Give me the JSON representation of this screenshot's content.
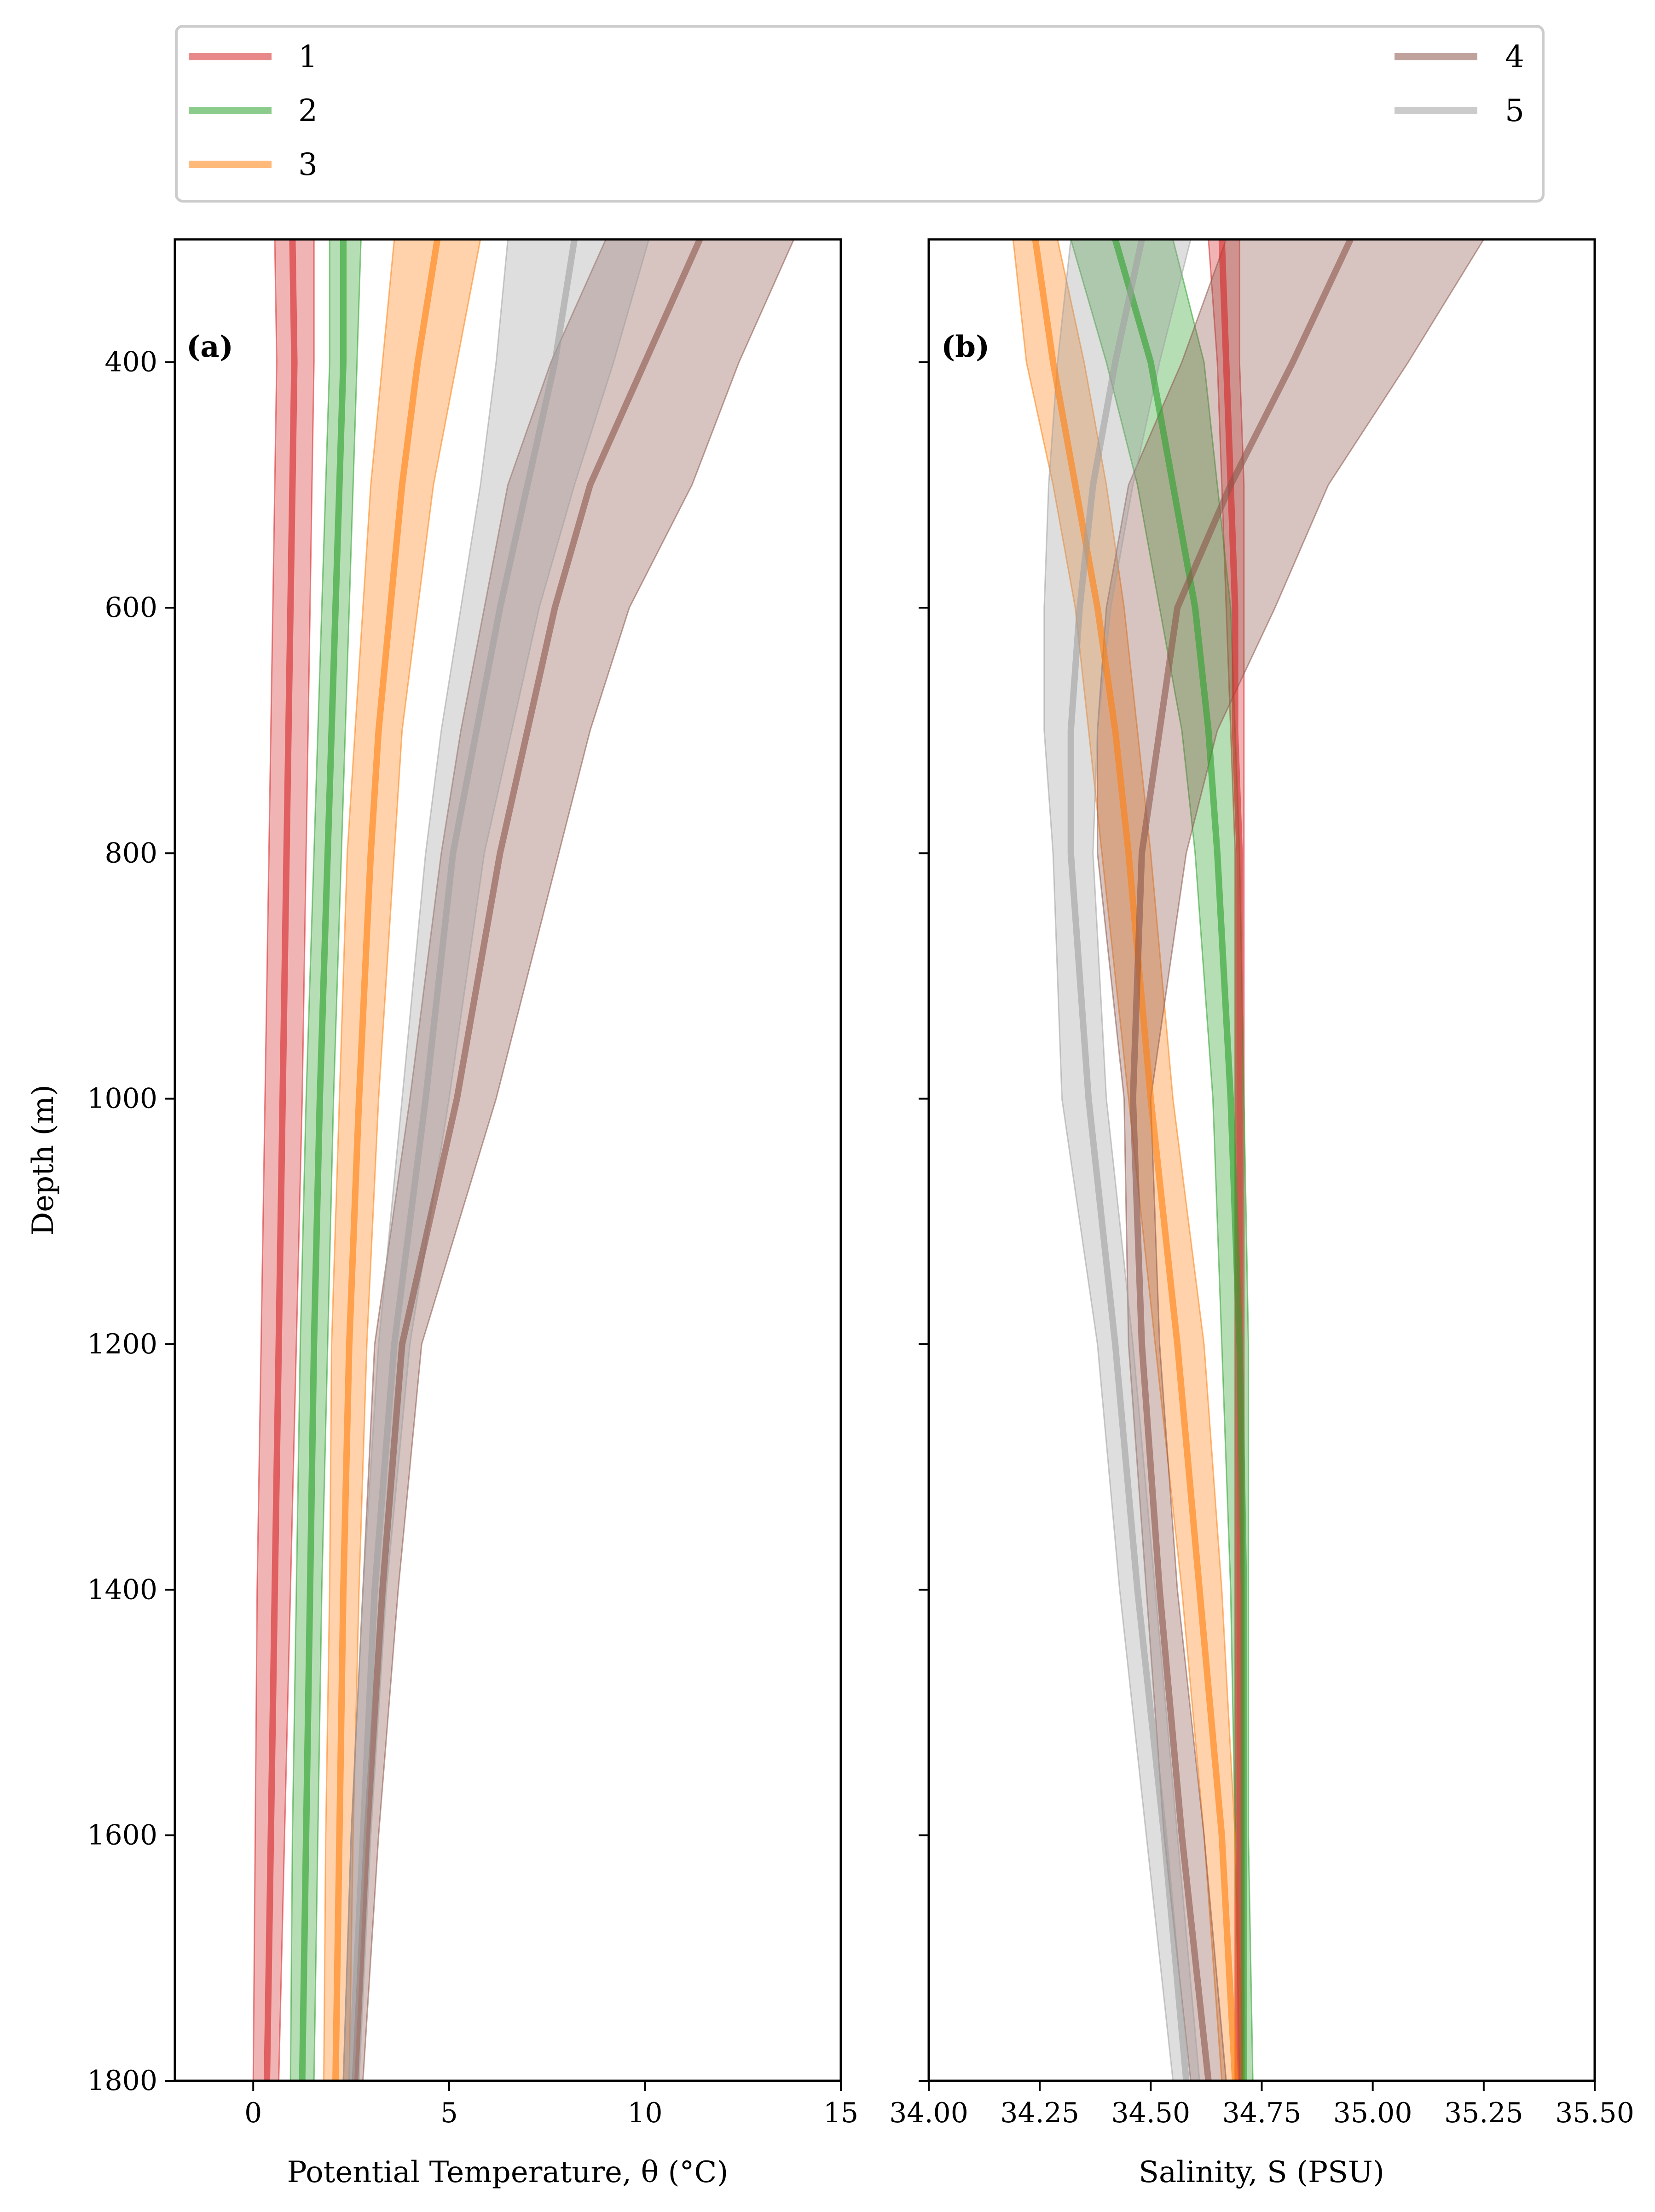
{
  "legend": {
    "position": "top, above both panels",
    "entries": [
      {
        "label": "1",
        "color": "#d62728"
      },
      {
        "label": "2",
        "color": "#2ca02c"
      },
      {
        "label": "3",
        "color": "#ff7f0e"
      },
      {
        "label": "4",
        "color": "#8c564b"
      },
      {
        "label": "5",
        "color": "#a0a0a0"
      }
    ]
  },
  "chart_data": [
    {
      "type": "line",
      "panel_label": "(a)",
      "xlabel": "Potential Temperature, θ (°C)",
      "ylabel": "Depth (m)",
      "xlim": [
        -2,
        15
      ],
      "ylim": [
        1800,
        300
      ],
      "y_inverted": true,
      "xticks": [
        0,
        5,
        10,
        15
      ],
      "xtick_labels": [
        "0",
        "5",
        "10",
        "15"
      ],
      "yticks": [
        400,
        600,
        800,
        1000,
        1200,
        1400,
        1600,
        1800
      ],
      "ytick_labels": [
        "400",
        "600",
        "800",
        "1000",
        "1200",
        "1400",
        "1600",
        "1800"
      ],
      "grid": false,
      "depth": [
        300,
        400,
        500,
        600,
        700,
        800,
        1000,
        1200,
        1400,
        1600,
        1800
      ],
      "series": [
        {
          "name": "1",
          "color": "#d62728",
          "mean": [
            1.0,
            1.05,
            1.0,
            0.95,
            0.9,
            0.85,
            0.75,
            0.65,
            0.55,
            0.45,
            0.35
          ],
          "lower": [
            0.55,
            0.6,
            0.55,
            0.5,
            0.45,
            0.4,
            0.3,
            0.2,
            0.1,
            0.05,
            0.0
          ],
          "upper": [
            1.55,
            1.55,
            1.5,
            1.45,
            1.4,
            1.35,
            1.25,
            1.1,
            0.95,
            0.8,
            0.65
          ]
        },
        {
          "name": "2",
          "color": "#2ca02c",
          "mean": [
            2.3,
            2.3,
            2.2,
            2.1,
            2.0,
            1.9,
            1.7,
            1.55,
            1.45,
            1.35,
            1.25
          ],
          "lower": [
            1.95,
            1.95,
            1.85,
            1.75,
            1.65,
            1.55,
            1.35,
            1.2,
            1.1,
            1.0,
            0.95
          ],
          "upper": [
            2.75,
            2.65,
            2.55,
            2.45,
            2.35,
            2.25,
            2.05,
            1.9,
            1.75,
            1.65,
            1.55
          ]
        },
        {
          "name": "3",
          "color": "#ff7f0e",
          "mean": [
            4.7,
            4.2,
            3.8,
            3.5,
            3.2,
            3.0,
            2.7,
            2.45,
            2.3,
            2.2,
            2.1
          ],
          "lower": [
            3.6,
            3.3,
            3.0,
            2.8,
            2.6,
            2.4,
            2.2,
            2.0,
            1.95,
            1.85,
            1.8
          ],
          "upper": [
            5.8,
            5.2,
            4.6,
            4.2,
            3.8,
            3.6,
            3.2,
            2.9,
            2.7,
            2.55,
            2.45
          ]
        },
        {
          "name": "4",
          "color": "#8c564b",
          "mean": [
            11.4,
            10.0,
            8.6,
            7.7,
            7.0,
            6.3,
            5.2,
            3.8,
            3.3,
            2.9,
            2.6
          ],
          "lower": [
            9.0,
            7.6,
            6.5,
            5.9,
            5.3,
            4.8,
            4.0,
            3.1,
            2.8,
            2.5,
            2.3
          ],
          "upper": [
            13.8,
            12.4,
            11.2,
            9.6,
            8.6,
            7.8,
            6.2,
            4.3,
            3.7,
            3.2,
            2.8
          ]
        },
        {
          "name": "5",
          "color": "#a0a0a0",
          "mean": [
            8.2,
            7.7,
            7.0,
            6.3,
            5.7,
            5.1,
            4.4,
            3.6,
            3.1,
            2.8,
            2.5
          ],
          "lower": [
            6.5,
            6.2,
            5.8,
            5.3,
            4.8,
            4.4,
            3.8,
            3.2,
            2.8,
            2.5,
            2.3
          ],
          "upper": [
            10.1,
            9.2,
            8.2,
            7.3,
            6.6,
            5.9,
            5.0,
            4.0,
            3.4,
            3.0,
            2.7
          ]
        }
      ]
    },
    {
      "type": "line",
      "panel_label": "(b)",
      "xlabel": "Salinity, S (PSU)",
      "ylabel": "",
      "xlim": [
        34.0,
        35.5
      ],
      "ylim": [
        1800,
        300
      ],
      "y_inverted": true,
      "xticks": [
        34.0,
        34.25,
        34.5,
        34.75,
        35.0,
        35.25,
        35.5
      ],
      "xtick_labels": [
        "34.00",
        "34.25",
        "34.50",
        "34.75",
        "35.00",
        "35.25",
        "35.50"
      ],
      "yticks": [
        400,
        600,
        800,
        1000,
        1200,
        1400,
        1600,
        1800
      ],
      "grid": false,
      "depth": [
        300,
        400,
        500,
        600,
        700,
        800,
        1000,
        1200,
        1400,
        1600,
        1800
      ],
      "series": [
        {
          "name": "1",
          "color": "#d62728",
          "mean": [
            34.66,
            34.67,
            34.68,
            34.69,
            34.69,
            34.7,
            34.7,
            34.7,
            34.7,
            34.7,
            34.7
          ],
          "lower": [
            34.63,
            34.65,
            34.66,
            34.67,
            34.68,
            34.69,
            34.69,
            34.69,
            34.69,
            34.69,
            34.69
          ],
          "upper": [
            34.7,
            34.7,
            34.71,
            34.71,
            34.71,
            34.71,
            34.71,
            34.71,
            34.71,
            34.71,
            34.71
          ]
        },
        {
          "name": "2",
          "color": "#2ca02c",
          "mean": [
            34.42,
            34.5,
            34.55,
            34.6,
            34.63,
            34.65,
            34.68,
            34.7,
            34.71,
            34.71,
            34.71
          ],
          "lower": [
            34.32,
            34.4,
            34.47,
            34.52,
            34.57,
            34.6,
            34.64,
            34.66,
            34.68,
            34.69,
            34.7
          ],
          "upper": [
            34.55,
            34.62,
            34.65,
            34.68,
            34.69,
            34.7,
            34.71,
            34.72,
            34.72,
            34.72,
            34.73
          ]
        },
        {
          "name": "3",
          "color": "#ff7f0e",
          "mean": [
            34.24,
            34.28,
            34.33,
            34.38,
            34.42,
            34.45,
            34.5,
            34.56,
            34.61,
            34.66,
            34.69
          ],
          "lower": [
            34.19,
            34.22,
            34.28,
            34.33,
            34.36,
            34.39,
            34.45,
            34.51,
            34.57,
            34.62,
            34.66
          ],
          "upper": [
            34.29,
            34.35,
            34.4,
            34.44,
            34.47,
            34.5,
            34.55,
            34.62,
            34.66,
            34.69,
            34.71
          ]
        },
        {
          "name": "4",
          "color": "#8c564b",
          "mean": [
            34.95,
            34.82,
            34.68,
            34.56,
            34.52,
            34.48,
            34.46,
            34.48,
            34.52,
            34.57,
            34.63
          ],
          "lower": [
            34.67,
            34.57,
            34.45,
            34.4,
            34.38,
            34.38,
            34.44,
            34.45,
            34.49,
            34.53,
            34.59
          ],
          "upper": [
            35.25,
            35.08,
            34.9,
            34.78,
            34.65,
            34.58,
            34.5,
            34.52,
            34.56,
            34.62,
            34.67
          ]
        },
        {
          "name": "5",
          "color": "#a0a0a0",
          "mean": [
            34.48,
            34.42,
            34.37,
            34.34,
            34.32,
            34.32,
            34.36,
            34.42,
            34.47,
            34.53,
            34.58
          ],
          "lower": [
            34.32,
            34.29,
            34.27,
            34.26,
            34.26,
            34.28,
            34.3,
            34.38,
            34.43,
            34.49,
            34.55
          ],
          "upper": [
            34.59,
            34.52,
            34.46,
            34.41,
            34.38,
            34.37,
            34.4,
            34.46,
            34.51,
            34.56,
            34.61
          ]
        }
      ]
    }
  ]
}
